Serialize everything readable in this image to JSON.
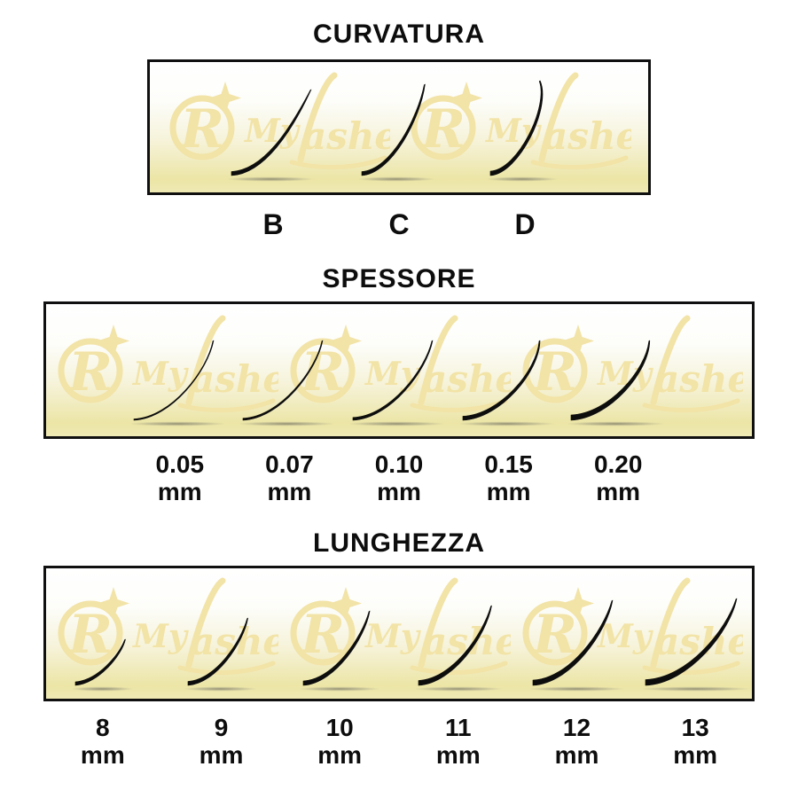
{
  "brand": {
    "initial": "R",
    "script_prefix": "My",
    "script_suffix": "ashes",
    "full_name": "My Lashes"
  },
  "colors": {
    "text": "#0d0d0d",
    "lash": "#0d0d0d",
    "box_border": "#101010",
    "watermark_gold": "#f2e3a6",
    "panel_gradient_top": "#ffffff",
    "panel_gradient_bottom": "#ece5a6"
  },
  "sections": [
    {
      "id": "curvatura",
      "title": "CURVATURA",
      "label_type": "single",
      "items": [
        {
          "label": "B"
        },
        {
          "label": "C"
        },
        {
          "label": "D"
        }
      ]
    },
    {
      "id": "spessore",
      "title": "SPESSORE",
      "label_type": "double",
      "items": [
        {
          "value": "0.05",
          "unit": "mm"
        },
        {
          "value": "0.07",
          "unit": "mm"
        },
        {
          "value": "0.10",
          "unit": "mm"
        },
        {
          "value": "0.15",
          "unit": "mm"
        },
        {
          "value": "0.20",
          "unit": "mm"
        }
      ]
    },
    {
      "id": "lunghezza",
      "title": "LUNGHEZZA",
      "label_type": "double",
      "items": [
        {
          "value": "8",
          "unit": "mm"
        },
        {
          "value": "9",
          "unit": "mm"
        },
        {
          "value": "10",
          "unit": "mm"
        },
        {
          "value": "11",
          "unit": "mm"
        },
        {
          "value": "12",
          "unit": "mm"
        },
        {
          "value": "13",
          "unit": "mm"
        }
      ]
    }
  ]
}
